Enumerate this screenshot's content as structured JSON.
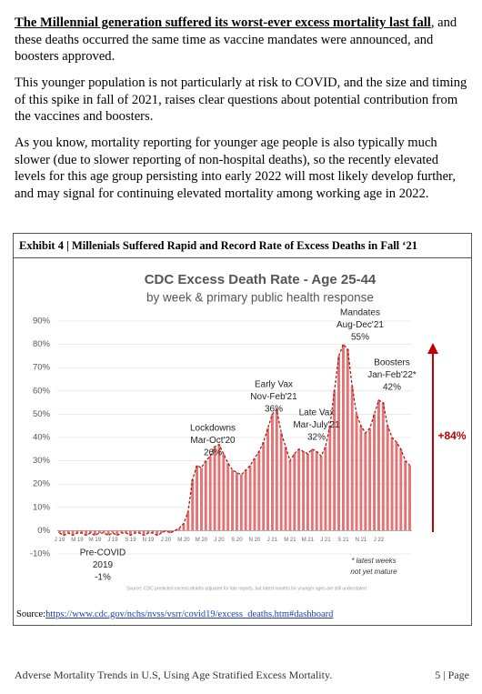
{
  "document": {
    "lead_bold": "The Millennial generation suffered its worst-ever excess mortality last fall",
    "lead_rest": ", and these deaths occurred the same time as vaccine mandates were announced, and boosters approved.",
    "paragraphs": [
      "This younger population is not particularly at risk to COVID, and the size and timing of this spike in fall of 2021, raises clear questions about potential contribution from the vaccines and boosters.",
      "As you know, mortality reporting for younger age people is also typically much slower (due to slower reporting of non-hospital deaths), so the recently elevated levels for this age group persisting into early 2022 will most likely develop further, and may signal for continuing elevated mortality among working age in 2022."
    ],
    "exhibit_heading": "Exhibit 4 | Millenials Suffered Rapid and Record Rate of Excess Deaths in Fall ‘21",
    "source_label": "Source:",
    "source_url": "https://www.cdc.gov/nchs/nvss/vsrr/covid19/excess_deaths.htm#dashboard",
    "footer_left": "Adverse Mortality Trends in U.S, Using Age Stratified Excess Mortality.",
    "footer_right": "5 | Page"
  },
  "chart_data": {
    "type": "bar",
    "title": "CDC Excess Death Rate - Age 25-44",
    "subtitle": "by week & primary public health response",
    "color": "#e57373",
    "trend_color": "#a51c1c",
    "grid": true,
    "ylim": [
      -10,
      90
    ],
    "yticks": [
      {
        "value": -10,
        "label": "-10%"
      },
      {
        "value": 0,
        "label": "0%"
      },
      {
        "value": 10,
        "label": "10%"
      },
      {
        "value": 20,
        "label": "20%"
      },
      {
        "value": 30,
        "label": "30%"
      },
      {
        "value": 40,
        "label": "40%"
      },
      {
        "value": 50,
        "label": "50%"
      },
      {
        "value": 60,
        "label": "60%"
      },
      {
        "value": 70,
        "label": "70%"
      },
      {
        "value": 80,
        "label": "80%"
      },
      {
        "value": 90,
        "label": "90%"
      }
    ],
    "categories": [
      "J 19",
      null,
      null,
      null,
      "M 19",
      null,
      null,
      null,
      "M 19",
      null,
      null,
      null,
      "J 19",
      null,
      null,
      null,
      "S 19",
      null,
      null,
      null,
      "N 19",
      null,
      null,
      null,
      "J 20",
      null,
      null,
      null,
      "M 20",
      null,
      null,
      null,
      "M 20",
      null,
      null,
      null,
      "J 20",
      null,
      null,
      null,
      "S 20",
      null,
      null,
      null,
      "N 20",
      null,
      null,
      null,
      "J 21",
      null,
      null,
      null,
      "M 21",
      null,
      null,
      null,
      "M 21",
      null,
      null,
      null,
      "J 21",
      null,
      null,
      null,
      "S 21",
      null,
      null,
      null,
      "N 21",
      null,
      null,
      null,
      "J 22",
      null,
      null,
      null,
      null,
      null,
      null,
      null
    ],
    "values": [
      -1,
      -2,
      -1,
      -2,
      -1,
      -1,
      -2,
      -1,
      -2,
      -1,
      -1,
      -2,
      -1,
      -2,
      -1,
      -1,
      -2,
      -1,
      -1,
      -2,
      -1,
      -1,
      -2,
      -1,
      0,
      -1,
      0,
      1,
      3,
      8,
      22,
      28,
      27,
      30,
      32,
      36,
      37,
      33,
      29,
      26,
      25,
      24,
      26,
      28,
      31,
      34,
      38,
      44,
      50,
      52,
      42,
      36,
      30,
      33,
      35,
      34,
      33,
      35,
      34,
      32,
      36,
      45,
      60,
      75,
      80,
      78,
      62,
      50,
      45,
      42,
      44,
      50,
      56,
      55,
      45,
      40,
      38,
      35,
      30,
      28
    ],
    "annotations": [
      {
        "lines": [
          "Pre-COVID",
          "2019",
          "-1%"
        ]
      },
      {
        "lines": [
          "Lockdowns",
          "Mar-Oct'20",
          "26%"
        ]
      },
      {
        "lines": [
          "Early Vax",
          "Nov-Feb'21",
          "36%"
        ]
      },
      {
        "lines": [
          "Late Vax",
          "Mar-July'21",
          "32%"
        ]
      },
      {
        "lines": [
          "Mandates",
          "Aug-Dec'21",
          "55%"
        ]
      },
      {
        "lines": [
          "Boosters",
          "Jan-Feb'22*",
          "42%"
        ]
      }
    ],
    "change_label": "+84%",
    "note": [
      "* latest weeks",
      "not yet mature"
    ],
    "footnote": "Source: CDC predicted excess deaths adjusted for late reports, but latest months for younger ages are still understated"
  }
}
